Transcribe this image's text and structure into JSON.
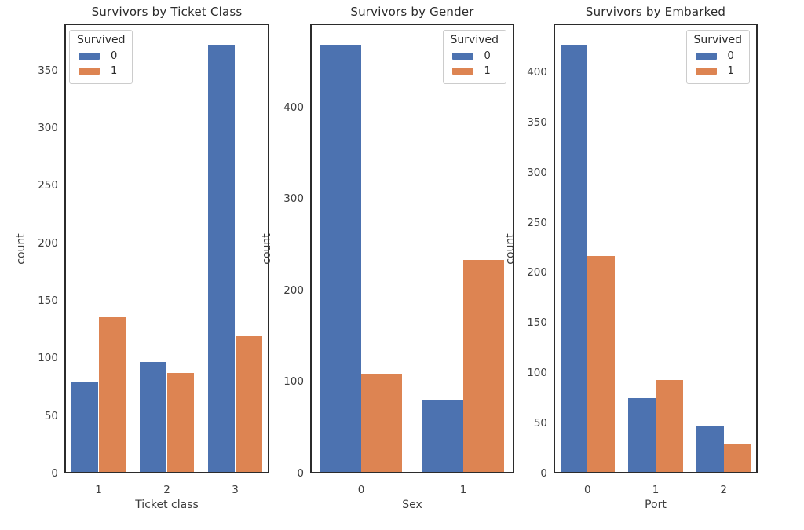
{
  "figure": {
    "background": "#ffffff",
    "axis_color": "#2b2b2b",
    "tick_text_color": "#3d3d3d"
  },
  "colors": {
    "survived_0": "#4C72B0",
    "survived_1": "#DD8452",
    "legend_border": "#cccccc"
  },
  "chart_data": [
    {
      "type": "bar",
      "title": "Survivors by Ticket Class",
      "xlabel": "Ticket class",
      "ylabel": "count",
      "categories": [
        "1",
        "2",
        "3"
      ],
      "series": [
        {
          "name": "0",
          "color": "#4C72B0",
          "values": [
            80,
            97,
            372
          ]
        },
        {
          "name": "1",
          "color": "#DD8452",
          "values": [
            136,
            87,
            119
          ]
        }
      ],
      "yticks": [
        0,
        50,
        100,
        150,
        200,
        250,
        300,
        350
      ],
      "ylim": [
        0,
        390.6
      ],
      "grid": false,
      "legend": {
        "title": "Survived",
        "entries": [
          "0",
          "1"
        ],
        "position": "top-left"
      }
    },
    {
      "type": "bar",
      "title": "Survivors by Gender",
      "xlabel": "Sex",
      "ylabel": "count",
      "categories": [
        "0",
        "1"
      ],
      "series": [
        {
          "name": "0",
          "color": "#4C72B0",
          "values": [
            468,
            81
          ]
        },
        {
          "name": "1",
          "color": "#DD8452",
          "values": [
            109,
            233
          ]
        }
      ],
      "yticks": [
        0,
        100,
        200,
        300,
        400
      ],
      "ylim": [
        0,
        491.4
      ],
      "grid": false,
      "legend": {
        "title": "Survived",
        "entries": [
          "0",
          "1"
        ],
        "position": "top-right"
      }
    },
    {
      "type": "bar",
      "title": "Survivors by Embarked",
      "xlabel": "Port",
      "ylabel": "count",
      "categories": [
        "0",
        "1",
        "2"
      ],
      "series": [
        {
          "name": "0",
          "color": "#4C72B0",
          "values": [
            427,
            75,
            47
          ]
        },
        {
          "name": "1",
          "color": "#DD8452",
          "values": [
            217,
            93,
            30
          ]
        }
      ],
      "yticks": [
        0,
        50,
        100,
        150,
        200,
        250,
        300,
        350,
        400
      ],
      "ylim": [
        0,
        448.4
      ],
      "grid": false,
      "legend": {
        "title": "Survived",
        "entries": [
          "0",
          "1"
        ],
        "position": "top-right"
      }
    }
  ]
}
